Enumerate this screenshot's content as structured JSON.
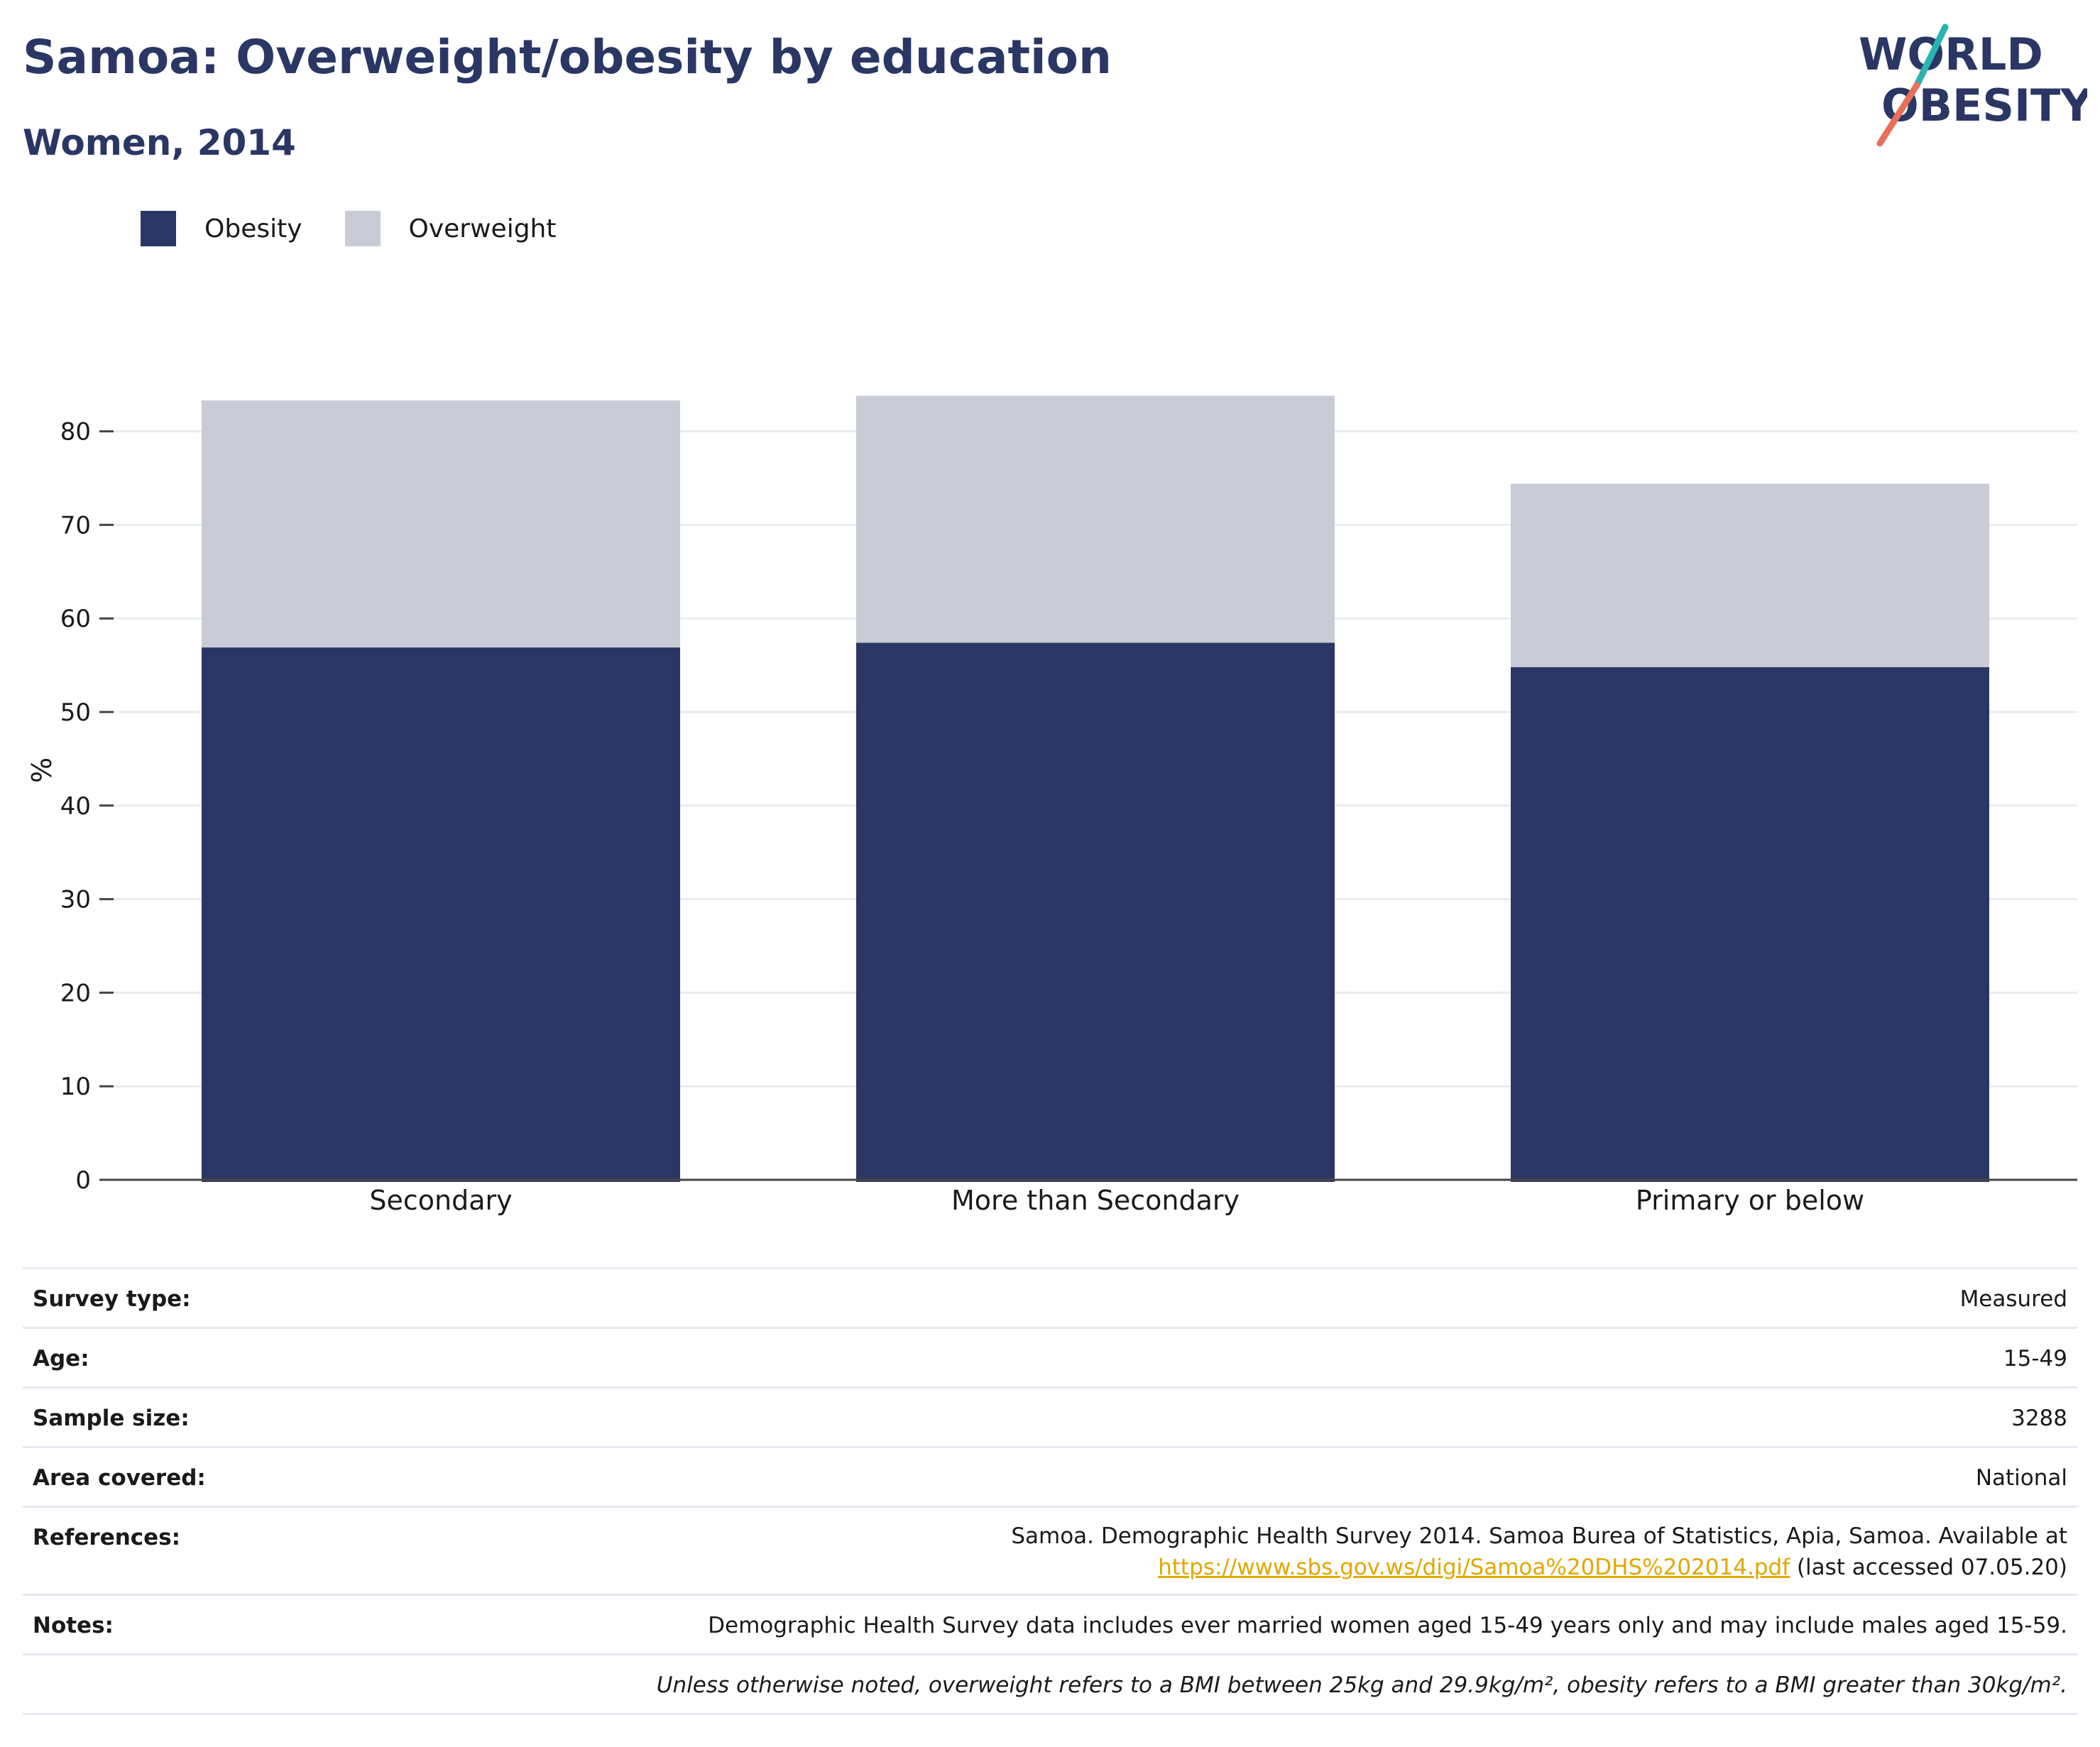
{
  "header": {
    "title": "Samoa: Overweight/obesity by education",
    "subtitle": "Women, 2014"
  },
  "logo": {
    "line1": "WORLD",
    "line2": "OBESITY",
    "colors": {
      "text": "#2a3764",
      "slash_top": "#2ab3b1",
      "slash_bottom": "#e8705a"
    }
  },
  "legend": [
    {
      "label": "Obesity",
      "color": "#2a3764"
    },
    {
      "label": "Overweight",
      "color": "#c9ccd6"
    }
  ],
  "chart_data": {
    "type": "bar",
    "stacked": true,
    "categories": [
      "Secondary",
      "More than Secondary",
      "Primary or below"
    ],
    "series": [
      {
        "name": "Obesity",
        "color": "#2a3764",
        "values": [
          56.9,
          57.4,
          54.8
        ]
      },
      {
        "name": "Overweight",
        "color": "#c9ccd6",
        "values": [
          26.4,
          26.4,
          19.6
        ]
      }
    ],
    "ylabel": "%",
    "ylim": [
      0,
      85
    ],
    "yticks": [
      0,
      10,
      20,
      30,
      40,
      50,
      60,
      70,
      80
    ],
    "grid": true,
    "legend_position": "top-left"
  },
  "info": {
    "rows": [
      {
        "key": "Survey type:",
        "value": "Measured"
      },
      {
        "key": "Age:",
        "value": "15-49"
      },
      {
        "key": "Sample size:",
        "value": "3288"
      },
      {
        "key": "Area covered:",
        "value": "National"
      }
    ],
    "references": {
      "key": "References:",
      "text": "Samoa. Demographic Health Survey 2014. Samoa Burea of Statistics, Apia, Samoa. Available at",
      "link": "https://www.sbs.gov.ws/digi/Samoa%20DHS%202014.pdf",
      "suffix": " (last accessed 07.05.20)"
    },
    "notes": {
      "key": "Notes:",
      "value": "Demographic Health Survey data includes ever married women aged 15-49 years only and may include males aged 15-59."
    },
    "footnote": "Unless otherwise noted, overweight refers to a BMI between 25kg and 29.9kg/m², obesity refers to a BMI greater than 30kg/m²."
  }
}
